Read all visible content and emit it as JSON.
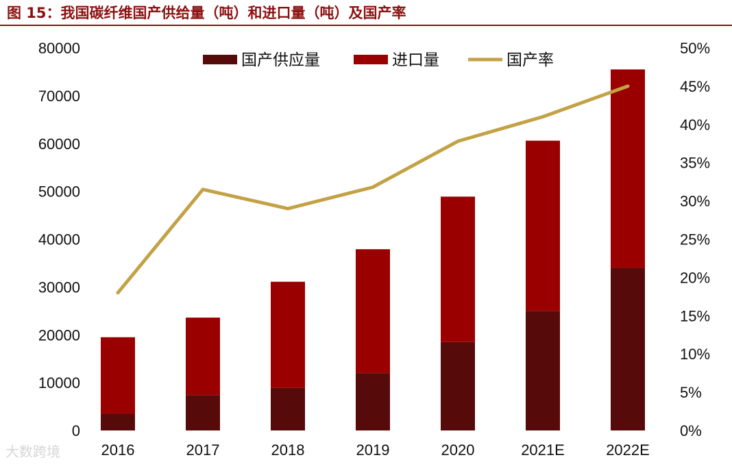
{
  "caption": "图 15：我国碳纤维国产供给量（吨）和进口量（吨）及国产率",
  "watermark": "大数跨境",
  "colors": {
    "domestic": "#560a0a",
    "import": "#9b0000",
    "rate": "#c3a246",
    "caption": "#8b1010"
  },
  "chart_data": {
    "type": "bar",
    "stacked": true,
    "categories": [
      "2016",
      "2017",
      "2018",
      "2019",
      "2020",
      "2021E",
      "2022E"
    ],
    "series": [
      {
        "name": "国产供应量",
        "type": "bar",
        "axis": "left",
        "values": [
          3500,
          7400,
          8900,
          12000,
          18500,
          25000,
          34000
        ]
      },
      {
        "name": "进口量",
        "type": "bar",
        "axis": "left",
        "values": [
          16000,
          16200,
          22200,
          25900,
          30400,
          35600,
          41500
        ]
      },
      {
        "name": "国产率",
        "type": "line",
        "axis": "right",
        "values": [
          0.18,
          0.315,
          0.29,
          0.318,
          0.378,
          0.41,
          0.45
        ]
      }
    ],
    "y_left": {
      "min": 0,
      "max": 80000,
      "ticks": [
        "0",
        "10000",
        "20000",
        "30000",
        "40000",
        "50000",
        "60000",
        "70000",
        "80000"
      ]
    },
    "y_right": {
      "min": 0,
      "max": 0.5,
      "ticks": [
        "0%",
        "5%",
        "10%",
        "15%",
        "20%",
        "25%",
        "30%",
        "35%",
        "40%",
        "45%",
        "50%"
      ]
    },
    "grid": false,
    "legend_position": "top"
  }
}
